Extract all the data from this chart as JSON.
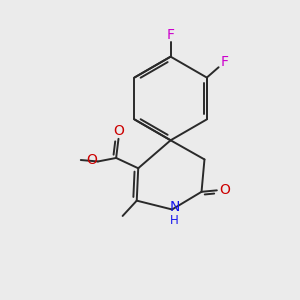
{
  "bg_color": "#ebebeb",
  "bond_color": "#2a2a2a",
  "bond_width": 1.4,
  "N_color": "#1515ee",
  "O_color": "#cc0000",
  "F_color": "#cc00cc",
  "text_fontsize": 10,
  "small_fontsize": 8.5,
  "fig_width": 3.0,
  "fig_height": 3.0,
  "xlim": [
    0,
    10
  ],
  "ylim": [
    0,
    10
  ]
}
